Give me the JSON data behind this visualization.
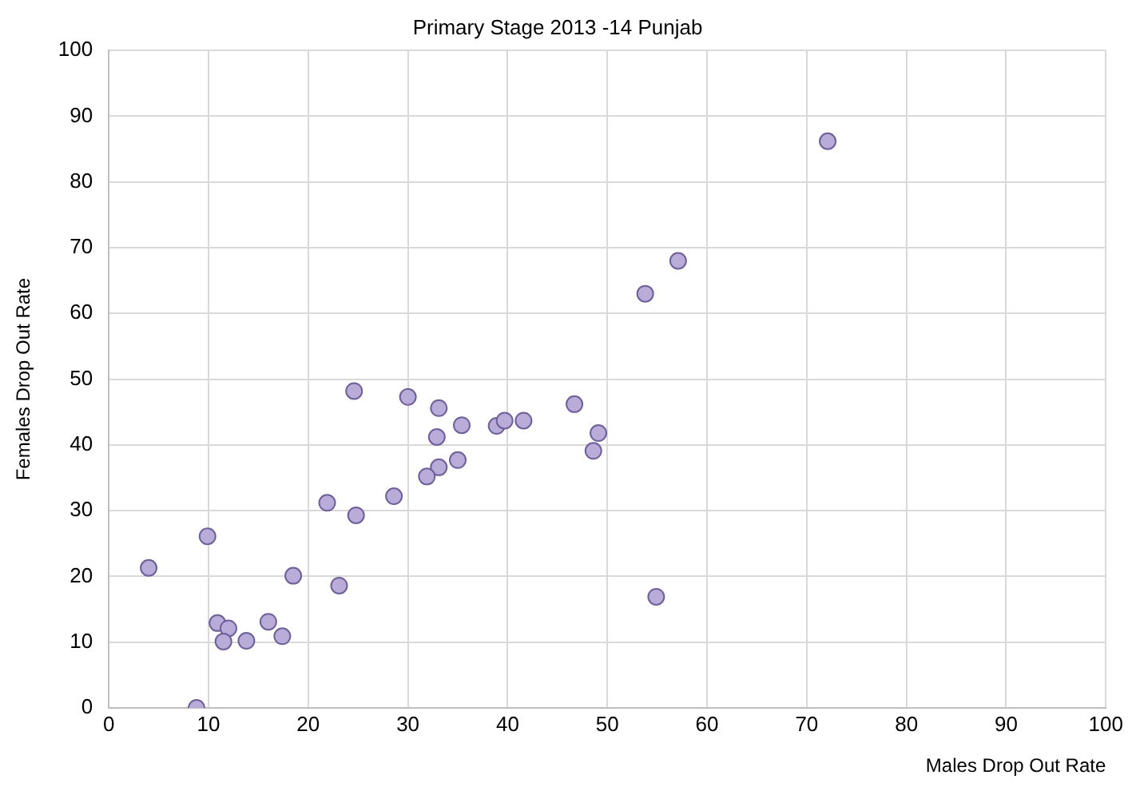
{
  "chart_data": {
    "type": "scatter",
    "title": "Primary Stage 2013 -14 Punjab",
    "xlabel": "Males Drop Out Rate",
    "ylabel": "Females Drop Out Rate",
    "x": [
      4.0,
      9.9,
      8.8,
      10.9,
      12.0,
      11.5,
      13.8,
      16.0,
      17.4,
      18.5,
      23.1,
      21.9,
      24.8,
      24.6,
      30.0,
      33.1,
      35.4,
      32.9,
      38.9,
      39.7,
      41.6,
      46.7,
      49.1,
      48.6,
      35.0,
      33.1,
      31.9,
      28.6,
      72.1,
      57.1,
      53.8,
      54.9
    ],
    "values": [
      21.3,
      26.1,
      0,
      12.9,
      12.1,
      10.1,
      10.2,
      13.1,
      10.9,
      20.1,
      18.6,
      31.2,
      29.3,
      48.2,
      47.3,
      45.6,
      43.0,
      41.2,
      42.9,
      43.7,
      43.7,
      46.2,
      41.8,
      39.1,
      37.7,
      36.6,
      35.2,
      32.2,
      86.2,
      68.0,
      63.0,
      16.9
    ],
    "color": "#b9acd8",
    "marker": "circle",
    "grid": true,
    "xlim": [
      0,
      100
    ],
    "xticks": [
      0,
      10,
      20,
      30,
      40,
      50,
      60,
      70,
      80,
      90,
      100
    ],
    "ylim": [
      0,
      100
    ],
    "yticks": [
      0,
      10,
      20,
      30,
      40,
      50,
      60,
      70,
      80,
      90,
      100
    ]
  }
}
